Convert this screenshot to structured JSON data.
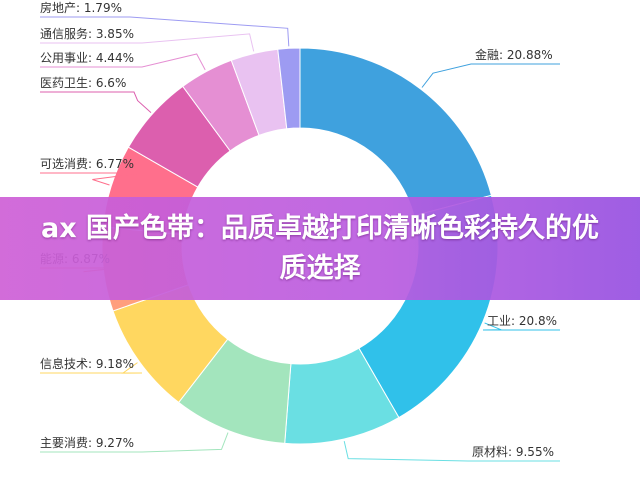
{
  "chart_data": {
    "type": "pie",
    "donut": true,
    "legend": "none",
    "slices": [
      {
        "label": "金融",
        "value": 20.88,
        "display": "金融: 20.88%",
        "color": "#3fa1de"
      },
      {
        "label": "工业",
        "value": 20.8,
        "display": "工业: 20.8%",
        "color": "#30c1ea"
      },
      {
        "label": "原材料",
        "value": 9.55,
        "display": "原材料: 9.55%",
        "color": "#6adfe3"
      },
      {
        "label": "主要消费",
        "value": 9.27,
        "display": "主要消费: 9.27%",
        "color": "#a3e5bd"
      },
      {
        "label": "信息技术",
        "value": 9.18,
        "display": "信息技术: 9.18%",
        "color": "#ffd760"
      },
      {
        "label": "能源",
        "value": 6.87,
        "display": "能源: 6.87%",
        "color": "#ff9e7d"
      },
      {
        "label": "可选消费",
        "value": 6.77,
        "display": "可选消费: 6.77%",
        "color": "#ff6f8c"
      },
      {
        "label": "医药卫生",
        "value": 6.6,
        "display": "医药卫生: 6.6%",
        "color": "#dc5fae"
      },
      {
        "label": "公用事业",
        "value": 4.44,
        "display": "公用事业: 4.44%",
        "color": "#e58fd3"
      },
      {
        "label": "通信服务",
        "value": 3.85,
        "display": "通信服务: 3.85%",
        "color": "#e9c2f1"
      },
      {
        "label": "房地产",
        "value": 1.79,
        "display": "房地产: 1.79%",
        "color": "#9d9bf2"
      }
    ]
  },
  "banner": {
    "text": "ax 国产色带：品质卓越打印清晰色彩持久的优质选择"
  }
}
